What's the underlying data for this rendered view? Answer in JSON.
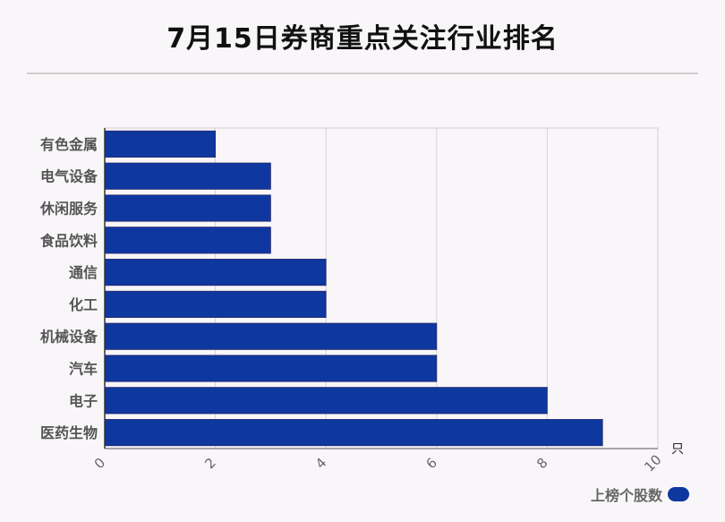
{
  "title": "7月15日券商重点关注行业排名",
  "chart_data": {
    "type": "bar",
    "orientation": "horizontal",
    "categories": [
      "有色金属",
      "电气设备",
      "休闲服务",
      "食品饮料",
      "通信",
      "化工",
      "机械设备",
      "汽车",
      "电子",
      "医药生物"
    ],
    "series": [
      {
        "name": "上榜个股数",
        "values": [
          2,
          3,
          3,
          3,
          4,
          4,
          6,
          6,
          8,
          9
        ]
      }
    ],
    "xlim": [
      0,
      10
    ],
    "xticks": [
      0,
      2,
      4,
      6,
      8,
      10
    ],
    "xunit": "只",
    "grid": true,
    "legend_position": "bottom-right",
    "bar_color": "#0f37a0"
  }
}
